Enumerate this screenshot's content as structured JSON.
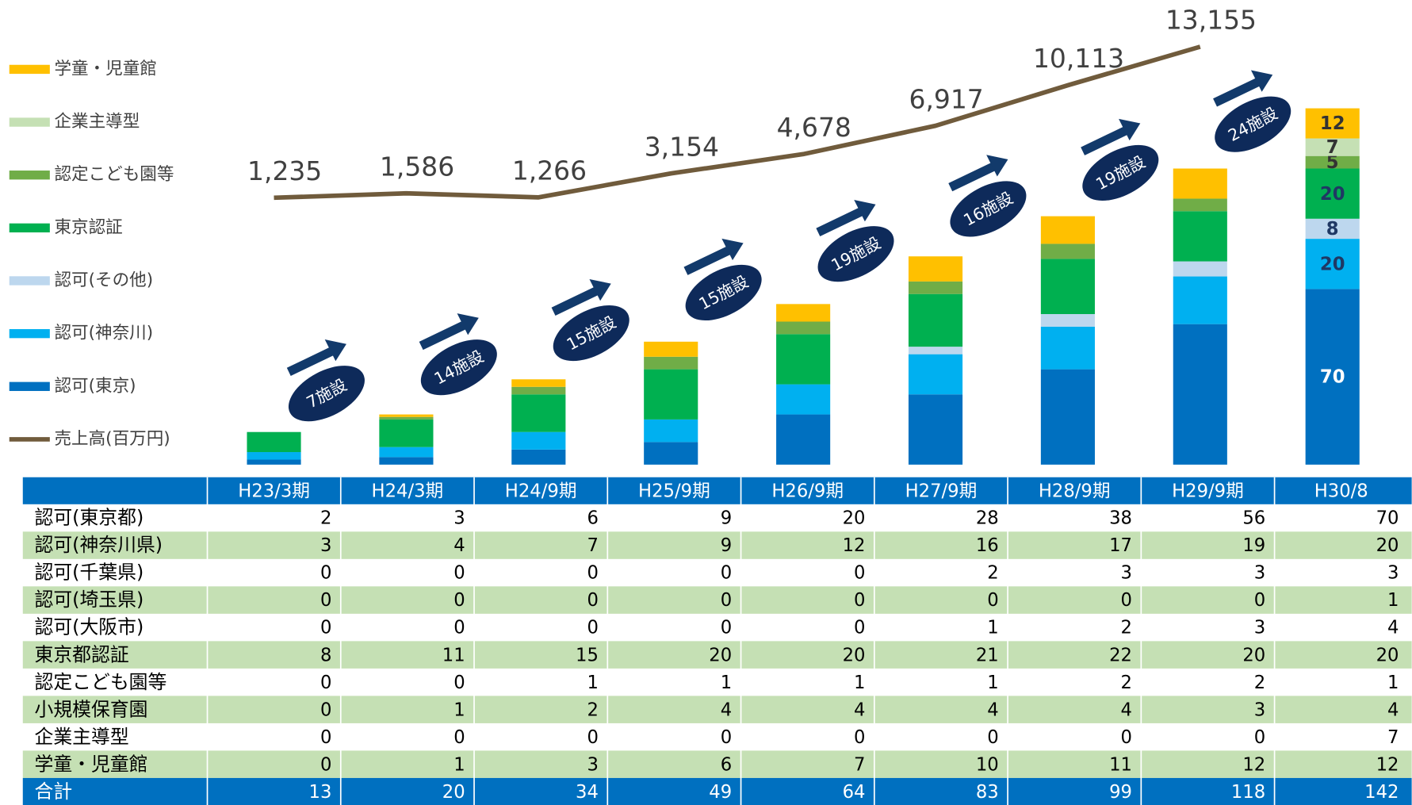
{
  "chart_data": {
    "type": "bar",
    "categories": [
      "H23/3期",
      "H24/3期",
      "H24/9期",
      "H25/9期",
      "H26/9期",
      "H27/9期",
      "H28/9期",
      "H29/9期",
      "H30/8"
    ],
    "ylim": [
      0,
      150
    ],
    "y2lim": [
      0,
      14000
    ],
    "series": [
      {
        "name": "認可(東京)",
        "color": "#0070c0",
        "values": [
          2,
          3,
          6,
          9,
          20,
          28,
          38,
          56,
          70
        ]
      },
      {
        "name": "認可(神奈川)",
        "color": "#00b0f0",
        "values": [
          3,
          4,
          7,
          9,
          12,
          16,
          17,
          19,
          20
        ]
      },
      {
        "name": "認可(その他)",
        "color": "#bdd7ee",
        "values": [
          0,
          0,
          0,
          0,
          0,
          3,
          5,
          6,
          8
        ]
      },
      {
        "name": "東京認証",
        "color": "#00b050",
        "values": [
          8,
          11,
          15,
          20,
          20,
          21,
          22,
          20,
          20
        ]
      },
      {
        "name": "認定こども園等",
        "color": "#70ad47",
        "values": [
          0,
          1,
          3,
          5,
          5,
          5,
          6,
          5,
          5
        ]
      },
      {
        "name": "企業主導型",
        "color": "#c5e0b4",
        "values": [
          0,
          0,
          0,
          0,
          0,
          0,
          0,
          0,
          7
        ]
      },
      {
        "name": "学童・児童館",
        "color": "#ffc000",
        "values": [
          0,
          1,
          3,
          6,
          7,
          10,
          11,
          12,
          12
        ]
      },
      {
        "name": "売上高(百万円)",
        "type": "line",
        "axis": "y2",
        "color": "#705b3c",
        "values": [
          1235,
          1586,
          1266,
          3154,
          4678,
          6917,
          10113,
          13155,
          null
        ],
        "value_labels": [
          "1,235",
          "1,586",
          "1,266",
          "3,154",
          "4,678",
          "6,917",
          "10,113",
          "13,155",
          null
        ]
      }
    ],
    "annotations": [
      "7施設",
      "14施設",
      "15施設",
      "15施設",
      "19施設",
      "16施設",
      "19施設",
      "24施設"
    ]
  },
  "table": {
    "rows": [
      {
        "label": "認可(東京都)",
        "values": [
          2,
          3,
          6,
          9,
          20,
          28,
          38,
          56,
          70
        ]
      },
      {
        "label": "認可(神奈川県)",
        "values": [
          3,
          4,
          7,
          9,
          12,
          16,
          17,
          19,
          20
        ]
      },
      {
        "label": "認可(千葉県)",
        "values": [
          0,
          0,
          0,
          0,
          0,
          2,
          3,
          3,
          3
        ]
      },
      {
        "label": "認可(埼玉県)",
        "values": [
          0,
          0,
          0,
          0,
          0,
          0,
          0,
          0,
          1
        ]
      },
      {
        "label": "認可(大阪市)",
        "values": [
          0,
          0,
          0,
          0,
          0,
          1,
          2,
          3,
          4
        ]
      },
      {
        "label": "東京都認証",
        "values": [
          8,
          11,
          15,
          20,
          20,
          21,
          22,
          20,
          20
        ]
      },
      {
        "label": "認定こども園等",
        "values": [
          0,
          0,
          1,
          1,
          1,
          1,
          2,
          2,
          1
        ]
      },
      {
        "label": "小規模保育園",
        "values": [
          0,
          1,
          2,
          4,
          4,
          4,
          4,
          3,
          4
        ]
      },
      {
        "label": "企業主導型",
        "values": [
          0,
          0,
          0,
          0,
          0,
          0,
          0,
          0,
          7
        ]
      },
      {
        "label": "学童・児童館",
        "values": [
          0,
          1,
          3,
          6,
          7,
          10,
          11,
          12,
          12
        ]
      },
      {
        "label": "合計",
        "values": [
          13,
          20,
          34,
          49,
          64,
          83,
          99,
          118,
          142
        ]
      }
    ]
  }
}
